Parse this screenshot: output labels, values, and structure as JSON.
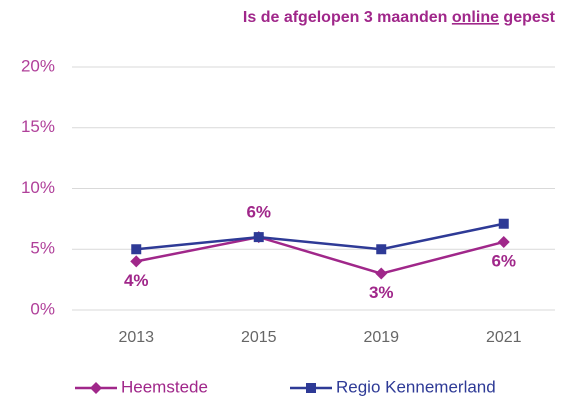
{
  "chart_data": {
    "type": "line",
    "title": [
      "Is de afgelopen 3 maanden ",
      "online",
      " gepest"
    ],
    "categories": [
      "2013",
      "2015",
      "2019",
      "2021"
    ],
    "series": [
      {
        "name": "Heemstede",
        "color": "#a0278a",
        "marker": "diamond",
        "values": [
          4,
          6,
          3,
          5.6
        ],
        "value_labels": [
          "4%",
          "6%",
          "3%",
          "6%"
        ]
      },
      {
        "name": "Regio Kennemerland",
        "color": "#2e3a96",
        "marker": "square",
        "values": [
          5,
          6,
          5,
          7.1
        ]
      }
    ],
    "ylim": [
      0,
      20
    ],
    "yticks": [
      {
        "value": 0,
        "label": "0%"
      },
      {
        "value": 5,
        "label": "5%"
      },
      {
        "value": 10,
        "label": "10%"
      },
      {
        "value": 15,
        "label": "15%"
      },
      {
        "value": 20,
        "label": "20%"
      }
    ],
    "grid": true,
    "legend": "bottom"
  }
}
